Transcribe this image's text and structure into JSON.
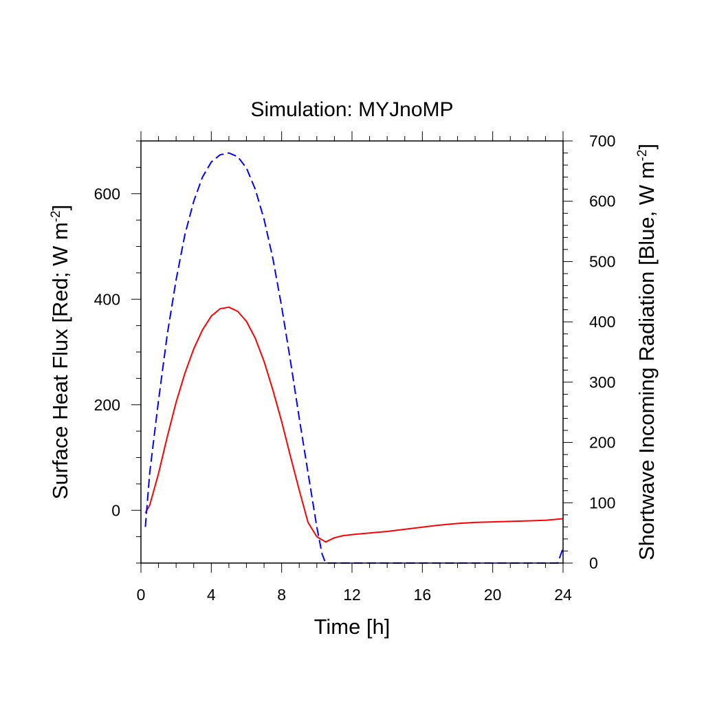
{
  "chart_data": {
    "type": "line",
    "title": "Simulation: MYJnoMP",
    "xlabel": "Time [h]",
    "ylabel_left": {
      "prefix": "Surface Heat Flux [Red; W m",
      "sup": "-2",
      "suffix": "]"
    },
    "ylabel_right": {
      "prefix": "Shortwave Incoming Radiation [Blue, W m",
      "sup": "-2",
      "suffix": "]"
    },
    "xlim": [
      0,
      24
    ],
    "ylim_left": [
      -100,
      700
    ],
    "ylim_right": [
      0,
      700
    ],
    "x_ticks": [
      "0",
      "4",
      "8",
      "12",
      "16",
      "20",
      "24"
    ],
    "y_left_ticks": [
      "0",
      "200",
      "400",
      "600"
    ],
    "y_right_ticks": [
      "0",
      "100",
      "200",
      "300",
      "400",
      "500",
      "600",
      "700"
    ],
    "grid": false,
    "series": [
      {
        "axis": "left",
        "color": "#ff0000",
        "style": "solid",
        "x": [
          0.25,
          0.5,
          1,
          1.5,
          2,
          2.5,
          3,
          3.5,
          4,
          4.5,
          5,
          5.5,
          6,
          6.5,
          7,
          7.5,
          8,
          8.5,
          9,
          9.5,
          10,
          10.5,
          11,
          11.5,
          12,
          13,
          14,
          15,
          16,
          17,
          18,
          19,
          20,
          21,
          22,
          23,
          24
        ],
        "y": [
          -5,
          10,
          70,
          140,
          205,
          260,
          306,
          342,
          368,
          382,
          385,
          377,
          358,
          326,
          282,
          228,
          168,
          102,
          38,
          -23,
          -50,
          -60,
          -52,
          -48,
          -46,
          -43,
          -40,
          -36,
          -32,
          -28,
          -25,
          -23,
          -22,
          -21,
          -20,
          -19,
          -16
        ]
      },
      {
        "axis": "right",
        "color": "#0000ff",
        "style": "dashed",
        "x": [
          0.25,
          0.5,
          1,
          1.5,
          2,
          2.5,
          3,
          3.5,
          4,
          4.5,
          5,
          5.5,
          6,
          6.5,
          7,
          7.5,
          8,
          8.5,
          9,
          9.5,
          10,
          10.3,
          10.5,
          11,
          12,
          14,
          16,
          18,
          20,
          22,
          23.7,
          24
        ],
        "y": [
          60,
          150,
          270,
          380,
          470,
          545,
          600,
          640,
          665,
          677,
          680,
          674,
          655,
          620,
          570,
          505,
          425,
          335,
          240,
          150,
          60,
          15,
          0,
          0,
          0,
          0,
          0,
          0,
          0,
          0,
          0,
          25
        ]
      }
    ]
  }
}
